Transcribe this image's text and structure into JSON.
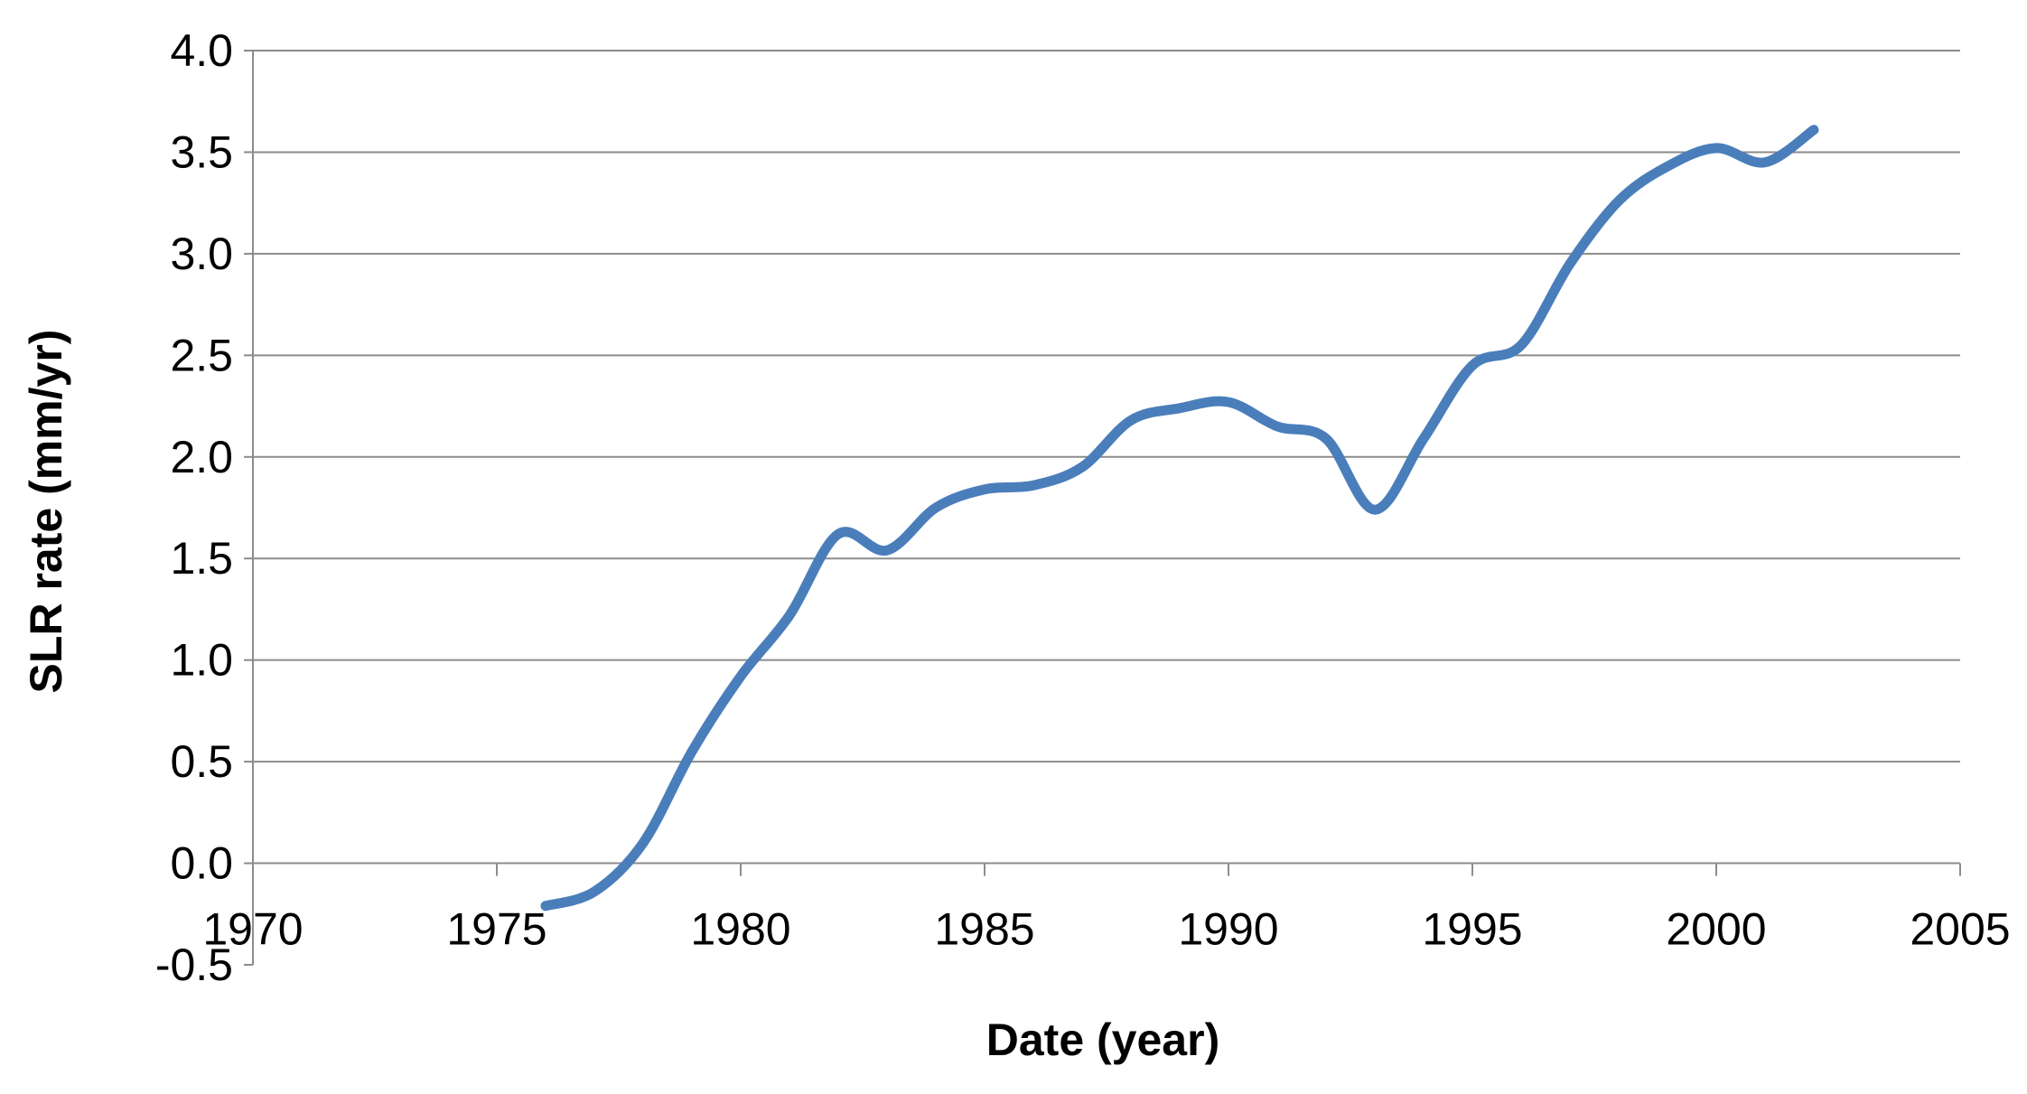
{
  "chart_data": {
    "type": "line",
    "title": "",
    "xlabel": "Date (year)",
    "ylabel": "SLR rate (mm/yr)",
    "xlim": [
      1970,
      2005
    ],
    "ylim": [
      -0.5,
      4.0
    ],
    "x_ticks": [
      "1970",
      "1975",
      "1980",
      "1985",
      "1990",
      "1995",
      "2000",
      "2005"
    ],
    "y_ticks": [
      "-0.5",
      "0.0",
      "0.5",
      "1.0",
      "1.5",
      "2.0",
      "2.5",
      "3.0",
      "3.5",
      "4.0"
    ],
    "grid": "horizontal",
    "legend": "none",
    "series": [
      {
        "color": "#4a7ebb",
        "x": [
          1976,
          1977,
          1978,
          1979,
          1980,
          1981,
          1982,
          1983,
          1984,
          1985,
          1986,
          1987,
          1988,
          1989,
          1990,
          1991,
          1992,
          1993,
          1994,
          1995,
          1996,
          1997,
          1998,
          1999,
          2000,
          2001,
          2002
        ],
        "y": [
          -0.21,
          -0.14,
          0.1,
          0.55,
          0.92,
          1.22,
          1.62,
          1.54,
          1.75,
          1.84,
          1.86,
          1.95,
          2.18,
          2.24,
          2.27,
          2.15,
          2.09,
          1.74,
          2.09,
          2.45,
          2.55,
          2.95,
          3.26,
          3.43,
          3.52,
          3.45,
          3.61
        ]
      }
    ]
  }
}
